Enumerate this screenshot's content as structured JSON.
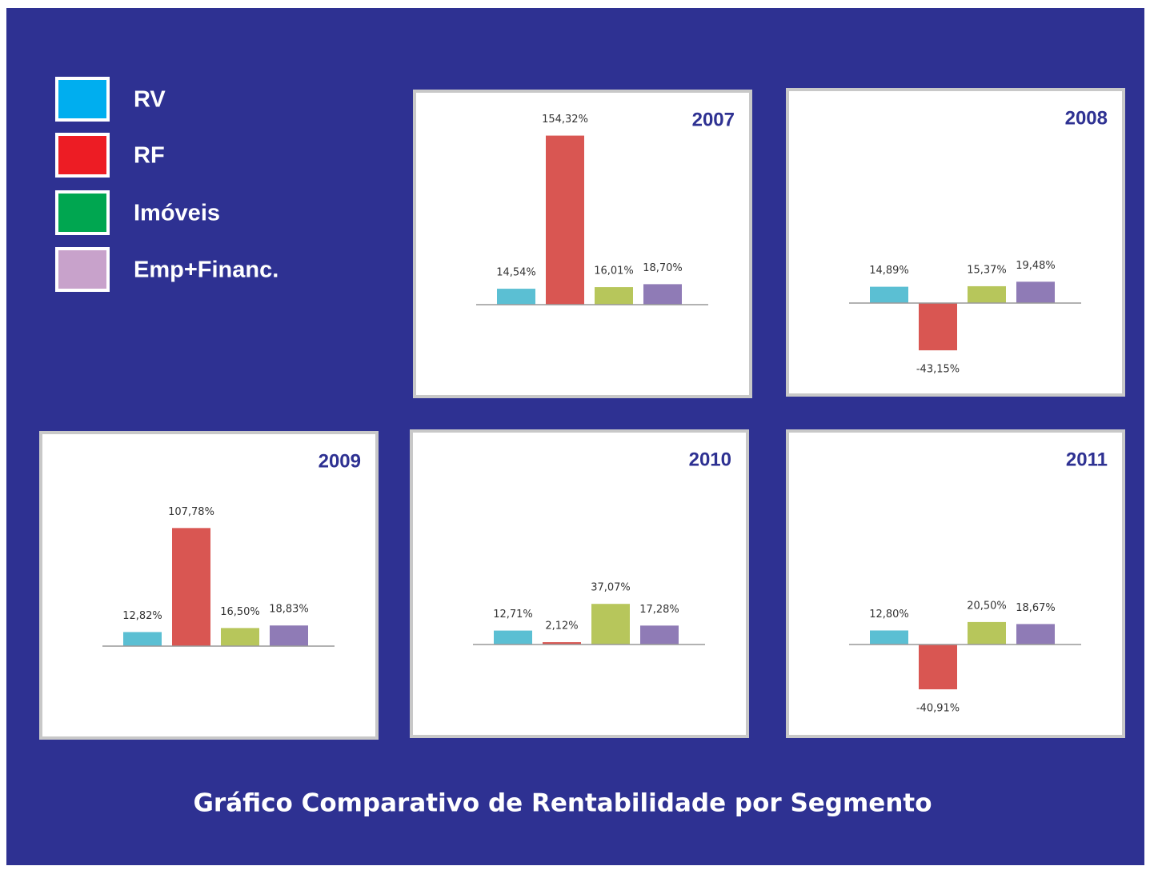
{
  "title": "Gráfico Comparativo de Rentabilidade por Segmento",
  "legend": [
    {
      "name": "RV",
      "color": "#00aeef"
    },
    {
      "name": "RF",
      "color": "#ed1c24"
    },
    {
      "name": "Imóveis",
      "color": "#00a650"
    },
    {
      "name": "Emp+Financ.",
      "color": "#c8a2cb"
    }
  ],
  "chart_data": [
    {
      "type": "bar",
      "title": "2007",
      "values": [
        14.54,
        154.32,
        16.01,
        18.7
      ],
      "value_labels": [
        "14,54%",
        "154,32%",
        "16,01%",
        "18,70%"
      ],
      "colors": [
        "#5bbfd3",
        "#d95652",
        "#b7c65b",
        "#8f7bb6"
      ]
    },
    {
      "type": "bar",
      "title": "2008",
      "values": [
        14.89,
        -43.15,
        15.37,
        19.48
      ],
      "value_labels": [
        "14,89%",
        "-43,15%",
        "15,37%",
        "19,48%"
      ],
      "colors": [
        "#5bbfd3",
        "#d95652",
        "#b7c65b",
        "#8f7bb6"
      ]
    },
    {
      "type": "bar",
      "title": "2009",
      "values": [
        12.82,
        107.78,
        16.5,
        18.83
      ],
      "value_labels": [
        "12,82%",
        "107,78%",
        "16,50%",
        "18,83%"
      ],
      "colors": [
        "#5bbfd3",
        "#d95652",
        "#b7c65b",
        "#8f7bb6"
      ]
    },
    {
      "type": "bar",
      "title": "2010",
      "values": [
        12.71,
        2.12,
        37.07,
        17.28
      ],
      "value_labels": [
        "12,71%",
        "2,12%",
        "37,07%",
        "17,28%"
      ],
      "colors": [
        "#5bbfd3",
        "#d95652",
        "#b7c65b",
        "#8f7bb6"
      ]
    },
    {
      "type": "bar",
      "title": "2011",
      "values": [
        12.8,
        -40.91,
        20.5,
        18.67
      ],
      "value_labels": [
        "12,80%",
        "-40,91%",
        "20,50%",
        "18,67%"
      ],
      "colors": [
        "#5bbfd3",
        "#d95652",
        "#b7c65b",
        "#8f7bb6"
      ]
    }
  ]
}
